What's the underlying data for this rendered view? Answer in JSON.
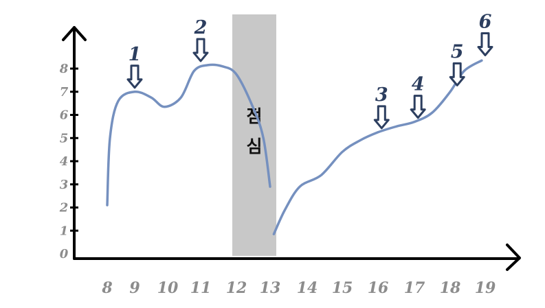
{
  "colors": {
    "curve": "#7590bf",
    "axis": "#000000",
    "marker": "#2c3e5f",
    "band": "#c8c8c8",
    "tick": "#8c8c8c"
  },
  "lunch_label": [
    "점",
    "심"
  ],
  "chart_data": {
    "type": "line",
    "x_ticks": [
      8,
      9,
      10,
      11,
      12,
      13,
      14,
      15,
      16,
      17,
      18,
      19
    ],
    "y_ticks": [
      0,
      1,
      2,
      3,
      4,
      5,
      6,
      7,
      8
    ],
    "xlim": [
      8,
      19
    ],
    "ylim": [
      0,
      8
    ],
    "grid": false,
    "series": [
      {
        "segments": [
          [
            [
              8.0,
              2.1
            ],
            [
              8.1,
              5.0
            ],
            [
              8.4,
              6.6
            ],
            [
              9.0,
              7.0
            ],
            [
              9.5,
              6.75
            ],
            [
              9.9,
              6.35
            ],
            [
              10.4,
              6.75
            ],
            [
              10.8,
              7.9
            ],
            [
              11.2,
              8.15
            ],
            [
              11.6,
              8.1
            ],
            [
              12.0,
              7.75
            ],
            [
              12.5,
              6.3
            ],
            [
              12.8,
              5.0
            ],
            [
              13.0,
              2.9
            ]
          ],
          [
            [
              13.1,
              0.85
            ],
            [
              13.4,
              1.9
            ],
            [
              13.8,
              2.9
            ],
            [
              14.4,
              3.4
            ],
            [
              15.0,
              4.4
            ],
            [
              15.5,
              4.9
            ],
            [
              16.0,
              5.25
            ],
            [
              16.5,
              5.5
            ],
            [
              17.0,
              5.7
            ],
            [
              17.5,
              6.1
            ],
            [
              18.0,
              7.0
            ],
            [
              18.4,
              7.9
            ],
            [
              18.9,
              8.35
            ]
          ]
        ]
      }
    ],
    "shaded_region": {
      "x": [
        12,
        13
      ]
    },
    "markers": [
      {
        "label": "1",
        "x": 9.0,
        "y": 7.0
      },
      {
        "label": "2",
        "x": 11.0,
        "y": 8.15
      },
      {
        "label": "3",
        "x": 16.1,
        "y": 5.25
      },
      {
        "label": "4",
        "x": 17.1,
        "y": 5.7
      },
      {
        "label": "5",
        "x": 18.2,
        "y": 7.1
      },
      {
        "label": "6",
        "x": 19.0,
        "y": 8.4
      }
    ]
  }
}
